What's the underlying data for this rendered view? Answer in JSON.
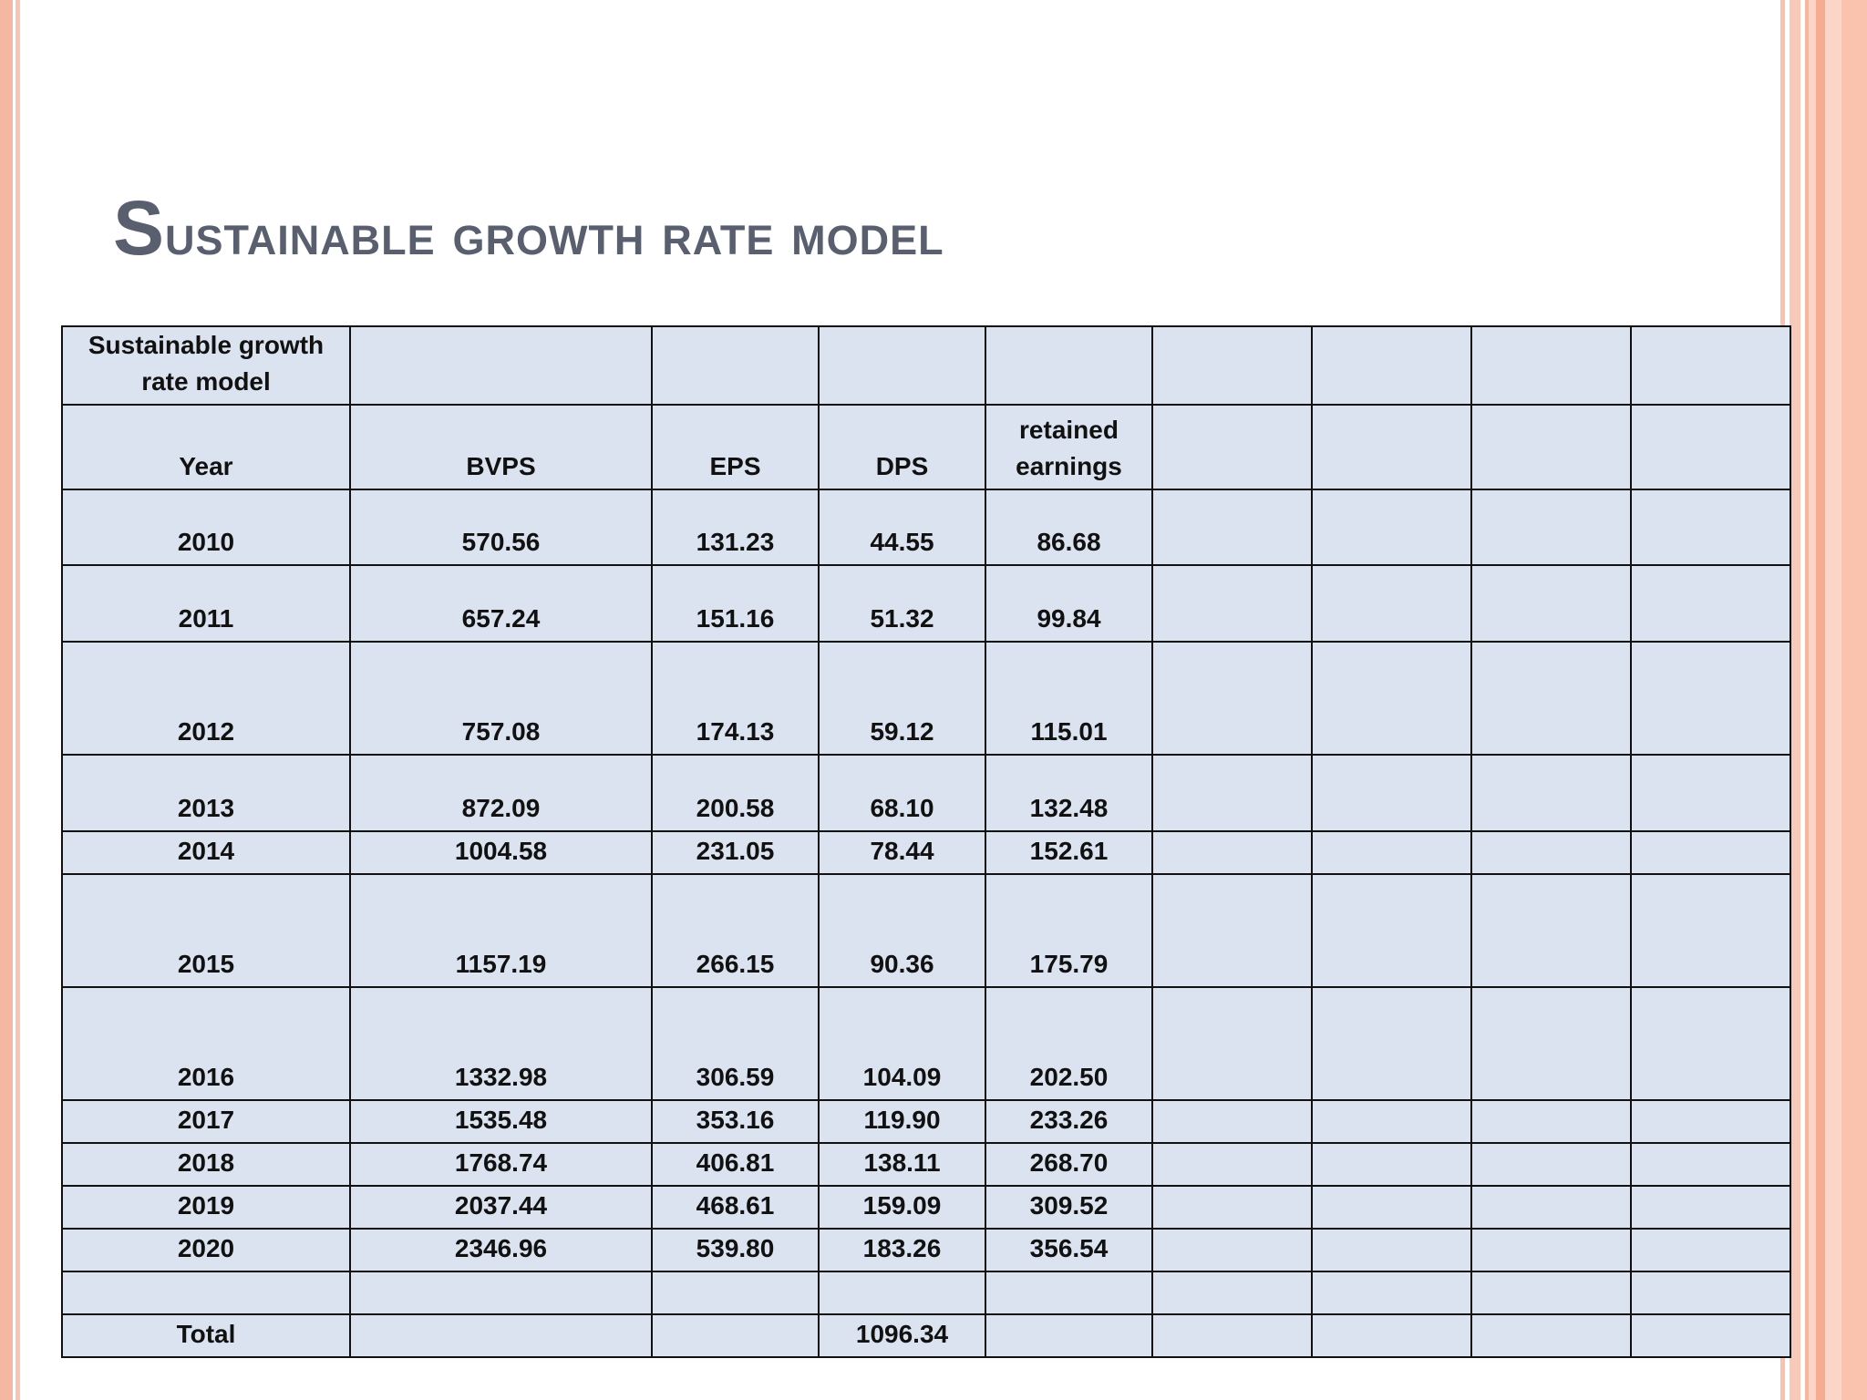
{
  "slide": {
    "title_first_letter": "S",
    "title_rest": "ustainable growth rate model"
  },
  "table": {
    "header_row_1": [
      "Sustainable growth rate model",
      "",
      "",
      "",
      "",
      "",
      "",
      "",
      ""
    ],
    "header_row_2": [
      "Year",
      "BVPS",
      "EPS",
      "DPS",
      "retained earnings",
      "",
      "",
      "",
      ""
    ],
    "rows": [
      [
        "2010",
        "570.56",
        "131.23",
        "44.55",
        "86.68"
      ],
      [
        "2011",
        "657.24",
        "151.16",
        "51.32",
        "99.84"
      ],
      [
        "2012",
        "757.08",
        "174.13",
        "59.12",
        "115.01"
      ],
      [
        "2013",
        "872.09",
        "200.58",
        "68.10",
        "132.48"
      ],
      [
        "2014",
        "1004.58",
        "231.05",
        "78.44",
        "152.61"
      ],
      [
        "2015",
        "1157.19",
        "266.15",
        "90.36",
        "175.79"
      ],
      [
        "2016",
        "1332.98",
        "306.59",
        "104.09",
        "202.50"
      ],
      [
        "2017",
        "1535.48",
        "353.16",
        "119.90",
        "233.26"
      ],
      [
        "2018",
        "1768.74",
        "406.81",
        "138.11",
        "268.70"
      ],
      [
        "2019",
        "2037.44",
        "468.61",
        "159.09",
        "309.52"
      ],
      [
        "2020",
        "2346.96",
        "539.80",
        "183.26",
        "356.54"
      ],
      [
        "",
        "",
        "",
        "",
        ""
      ],
      [
        "Total",
        "",
        "",
        "1096.34",
        ""
      ]
    ]
  },
  "colors": {
    "title": "#595f6e",
    "cell_fill": "#dce3f0",
    "border": "#111111",
    "frame_accent": "#f4b7a1"
  }
}
